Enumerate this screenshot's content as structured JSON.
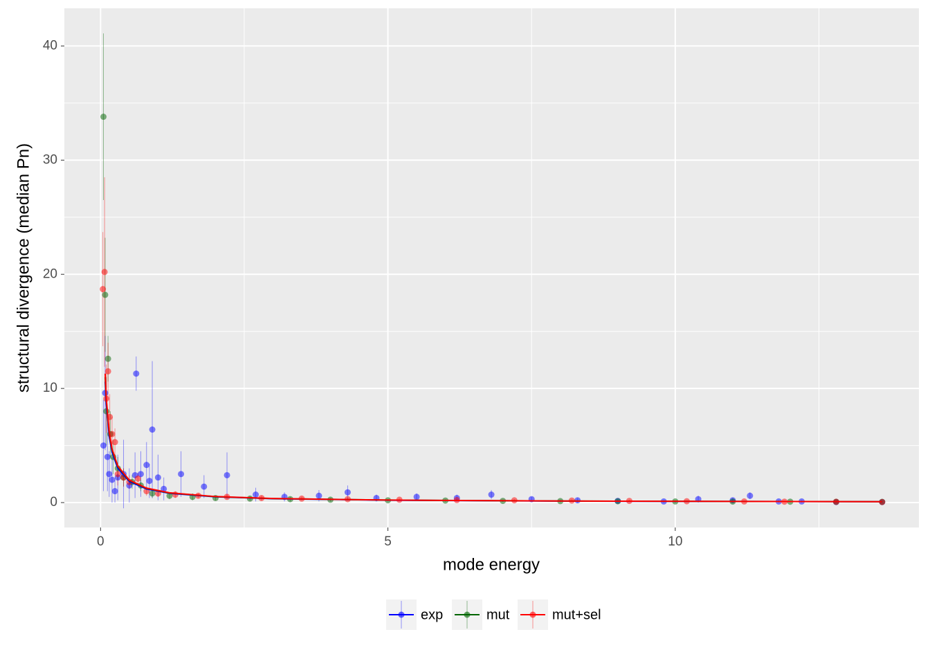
{
  "chart_data": {
    "type": "scatter",
    "x_label": "mode energy",
    "y_label": "structural divergence (median Pn)",
    "xlim": [
      -0.63,
      14.24
    ],
    "ylim": [
      -2.18,
      43.3
    ],
    "xticks": [
      0,
      5,
      10
    ],
    "yticks": [
      0,
      10,
      20,
      30,
      40
    ],
    "x_minor_grid": [
      2.5,
      7.5,
      12.5
    ],
    "y_minor_grid": [
      5,
      15,
      25,
      35
    ],
    "grid": true,
    "legend": "bottom",
    "series": [
      {
        "name": "exp",
        "color": "#0000ff",
        "x": [
          0.05,
          0.08,
          0.12,
          0.15,
          0.2,
          0.25,
          0.3,
          0.4,
          0.5,
          0.6,
          0.62,
          0.7,
          0.8,
          0.85,
          0.9,
          1.0,
          1.1,
          1.4,
          1.8,
          2.2,
          2.7,
          3.2,
          3.8,
          4.3,
          4.8,
          5.5,
          6.2,
          6.8,
          7.5,
          8.3,
          9.0,
          9.8,
          10.4,
          11.0,
          11.3,
          11.8,
          12.2,
          12.8,
          13.6
        ],
        "values": [
          5,
          9.6,
          4,
          2.5,
          2,
          1,
          2.2,
          2.5,
          1.5,
          2.4,
          11.3,
          2.5,
          3.3,
          1.9,
          6.4,
          2.2,
          1.2,
          2.5,
          1.4,
          2.4,
          0.7,
          0.5,
          0.6,
          0.9,
          0.4,
          0.5,
          0.4,
          0.7,
          0.3,
          0.2,
          0.15,
          0.1,
          0.3,
          0.2,
          0.6,
          0.1,
          0.1,
          0.05,
          0.05
        ],
        "errors": [
          4,
          5,
          3,
          2,
          2,
          1,
          2,
          3,
          1.5,
          2,
          1.5,
          2,
          2,
          1.5,
          6,
          2,
          1,
          2,
          1,
          2,
          0.6,
          0.4,
          0.5,
          0.6,
          0.3,
          0.3,
          0.3,
          0.4,
          0.2,
          0.2,
          0.1,
          0.1,
          0.3,
          0.2,
          0.3,
          0.1,
          0.1,
          0.05,
          0.05
        ],
        "fit_x": [
          0.08,
          0.1,
          0.15,
          0.2,
          0.3,
          0.5,
          0.8,
          1.2,
          2,
          3,
          5,
          8,
          11,
          13.6
        ],
        "fit_values": [
          10.6,
          8.6,
          5.8,
          4.4,
          3.0,
          1.85,
          1.19,
          0.81,
          0.5,
          0.34,
          0.21,
          0.13,
          0.1,
          0.08
        ]
      },
      {
        "name": "mut",
        "color": "#006400",
        "x": [
          0.05,
          0.08,
          0.1,
          0.13,
          0.17,
          0.22,
          0.3,
          0.4,
          0.55,
          0.7,
          0.9,
          1.2,
          1.6,
          2.0,
          2.6,
          3.3,
          4.0,
          5.0,
          6.0,
          7.0,
          8.0,
          9.0,
          10.0,
          11.0,
          12.0,
          12.8,
          13.6
        ],
        "values": [
          33.8,
          18.2,
          8,
          12.6,
          6,
          4,
          3,
          2.2,
          1.8,
          1.5,
          0.8,
          0.6,
          0.5,
          0.4,
          0.35,
          0.3,
          0.25,
          0.2,
          0.18,
          0.15,
          0.13,
          0.12,
          0.1,
          0.09,
          0.08,
          0.07,
          0.06
        ],
        "errors": [
          7.3,
          5,
          3,
          2,
          2,
          1.5,
          1,
          0.8,
          0.6,
          0.5,
          0.4,
          0.3,
          0.3,
          0.2,
          0.2,
          0.2,
          0.15,
          0.1,
          0.1,
          0.1,
          0.1,
          0.1,
          0.1,
          0.05,
          0.05,
          0.05,
          0.05
        ],
        "fit_x": [
          0.08,
          0.1,
          0.15,
          0.2,
          0.3,
          0.5,
          0.8,
          1.2,
          2,
          3,
          5,
          8,
          11,
          13.6
        ],
        "fit_values": [
          11.0,
          8.9,
          6.06,
          4.6,
          3.14,
          1.93,
          1.24,
          0.84,
          0.52,
          0.35,
          0.22,
          0.14,
          0.1,
          0.08
        ]
      },
      {
        "name": "mut+sel",
        "color": "#ff0000",
        "x": [
          0.04,
          0.07,
          0.1,
          0.13,
          0.16,
          0.2,
          0.25,
          0.3,
          0.4,
          0.5,
          0.65,
          0.8,
          1.0,
          1.3,
          1.7,
          2.2,
          2.8,
          3.5,
          4.3,
          5.2,
          6.2,
          7.2,
          8.2,
          9.2,
          10.2,
          11.2,
          11.9,
          12.8,
          13.6
        ],
        "values": [
          18.7,
          20.2,
          9.1,
          11.5,
          7.5,
          6,
          5.3,
          2.5,
          2.2,
          1.8,
          2.1,
          1,
          0.8,
          0.7,
          0.6,
          0.5,
          0.4,
          0.35,
          0.3,
          0.25,
          0.22,
          0.2,
          0.18,
          0.15,
          0.12,
          0.1,
          0.08,
          0.07,
          0.05
        ],
        "errors": [
          5,
          8.3,
          3,
          2.5,
          2,
          1.5,
          1.2,
          1,
          0.8,
          0.6,
          0.5,
          0.4,
          0.3,
          0.3,
          0.2,
          0.2,
          0.2,
          0.15,
          0.1,
          0.1,
          0.1,
          0.1,
          0.1,
          0.1,
          0.05,
          0.05,
          0.05,
          0.05,
          0.05
        ],
        "fit_x": [
          0.08,
          0.1,
          0.15,
          0.2,
          0.3,
          0.5,
          0.8,
          1.2,
          2,
          3,
          5,
          8,
          11,
          13.6
        ],
        "fit_values": [
          11.3,
          9.1,
          6.2,
          4.7,
          3.2,
          1.97,
          1.27,
          0.86,
          0.53,
          0.36,
          0.22,
          0.14,
          0.1,
          0.08
        ]
      }
    ]
  }
}
